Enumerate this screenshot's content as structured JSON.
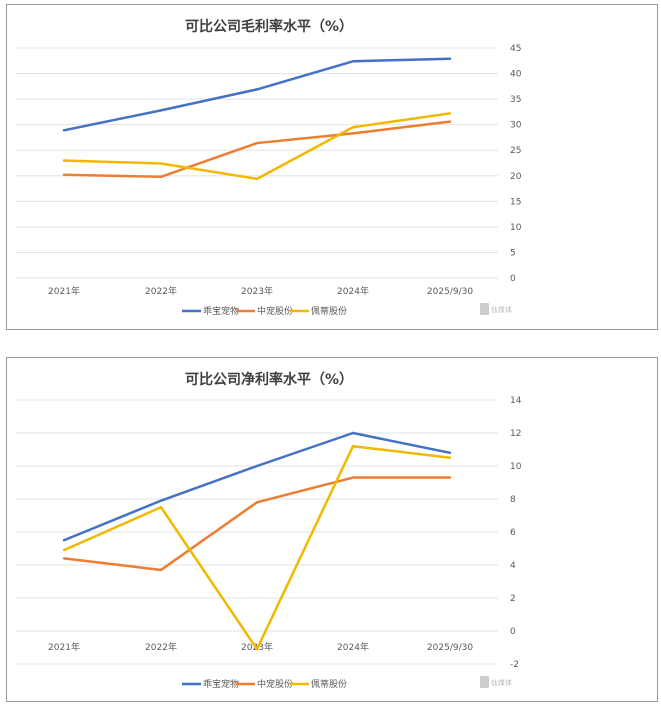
{
  "chart_data": [
    {
      "type": "line",
      "title": "可比公司毛利率水平（%）",
      "categories": [
        "2021年",
        "2022年",
        "2023年",
        "2024年",
        "2025/9/30"
      ],
      "ylim": [
        0,
        45
      ],
      "yticks": [
        0,
        5,
        10,
        15,
        20,
        25,
        30,
        35,
        40,
        45
      ],
      "y_axis_side": "right",
      "grid": true,
      "legend_position": "bottom",
      "series": [
        {
          "name": "乖宝宠物",
          "color": "#4472c4",
          "values": [
            28.9,
            32.8,
            36.9,
            42.4,
            42.9
          ]
        },
        {
          "name": "中宠股份",
          "color": "#ed7d31",
          "values": [
            20.2,
            19.8,
            26.4,
            28.3,
            30.6
          ]
        },
        {
          "name": "佩蒂股份",
          "color": "#f2b800",
          "values": [
            23.0,
            22.4,
            19.4,
            29.5,
            32.2
          ]
        }
      ]
    },
    {
      "type": "line",
      "title": "可比公司净利率水平（%）",
      "categories": [
        "2021年",
        "2022年",
        "2023年",
        "2024年",
        "2025/9/30"
      ],
      "ylim": [
        -2,
        14
      ],
      "yticks": [
        -2,
        0,
        2,
        4,
        6,
        8,
        10,
        12,
        14
      ],
      "y_axis_side": "right",
      "grid": true,
      "legend_position": "bottom",
      "series": [
        {
          "name": "乖宝宠物",
          "color": "#4472c4",
          "values": [
            5.5,
            7.9,
            10.0,
            12.0,
            10.8
          ]
        },
        {
          "name": "中宠股份",
          "color": "#ed7d31",
          "values": [
            4.4,
            3.7,
            7.8,
            9.3,
            9.3
          ]
        },
        {
          "name": "佩蒂股份",
          "color": "#f2b800",
          "values": [
            4.9,
            7.5,
            -1.1,
            11.2,
            10.5
          ]
        }
      ]
    }
  ],
  "watermark": "钛媒体"
}
